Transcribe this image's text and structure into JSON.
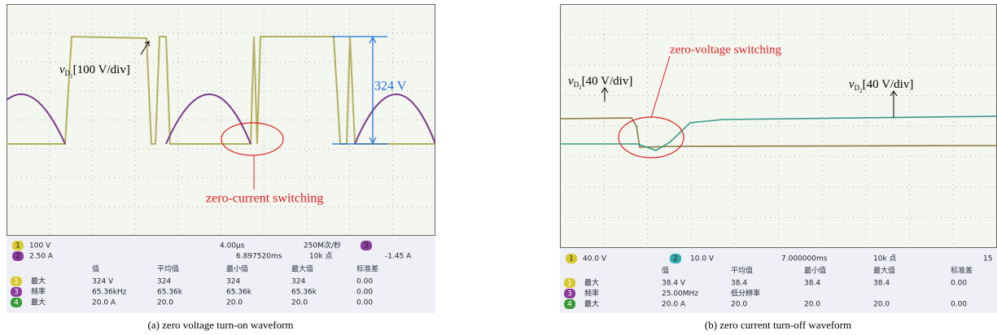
{
  "panels": [
    {
      "caption": "(a) zero voltage turn-on waveform",
      "probe_labels": [
        {
          "symbol": "v",
          "sub": "D",
          "subsub": "1",
          "scale": "[100 V/div]"
        }
      ],
      "annotations": [
        "324 V",
        "zero-current switching"
      ],
      "status": [
        "1",
        "100 V",
        "2",
        "2.50 A",
        "4.00µs",
        "6.897520ms",
        "250M次/秒",
        "10k 点",
        "3",
        "-1.45 A"
      ],
      "table": {
        "header": [
          "值",
          "平均值",
          "最小值",
          "最大值",
          "标准差"
        ],
        "channels": [
          "1",
          "3",
          "4"
        ],
        "rows": [
          [
            "最大",
            "324 V",
            "324",
            "324",
            "324",
            "0.00"
          ],
          [
            "频率",
            "65.36kHz",
            "65.36k",
            "65.36k",
            "65.36k",
            "0.00"
          ],
          [
            "最大",
            "20.0 A",
            "20.0",
            "20.0",
            "20.0",
            "0.00"
          ]
        ]
      }
    },
    {
      "caption": "(b) zero current turn-off waveform",
      "probe_labels": [
        {
          "symbol": "v",
          "sub": "D",
          "subsub": "1",
          "scale": "[40 V/div]"
        },
        {
          "symbol": "v",
          "sub": "D",
          "subsub": "2",
          "scale": "[40 V/div]"
        }
      ],
      "annotations": [
        "zero-voltage switching"
      ],
      "status": [
        "1",
        "40.0 V",
        "2",
        "10.0 V",
        "7.000000ms",
        "10k 点",
        "15"
      ],
      "table": {
        "header": [
          "值",
          "平均值",
          "最小值",
          "最大值",
          "标准差"
        ],
        "channels": [
          "1",
          "3",
          "4"
        ],
        "rows": [
          [
            "最大",
            "38.4 V",
            "38.4",
            "38.4",
            "38.4",
            "0.00"
          ],
          [
            "频率",
            "25.00MHz",
            "低分辨率"
          ],
          [
            "最大",
            "20.0 A",
            "20.0",
            "20.0",
            "20.0",
            "0.00"
          ]
        ]
      }
    }
  ]
}
